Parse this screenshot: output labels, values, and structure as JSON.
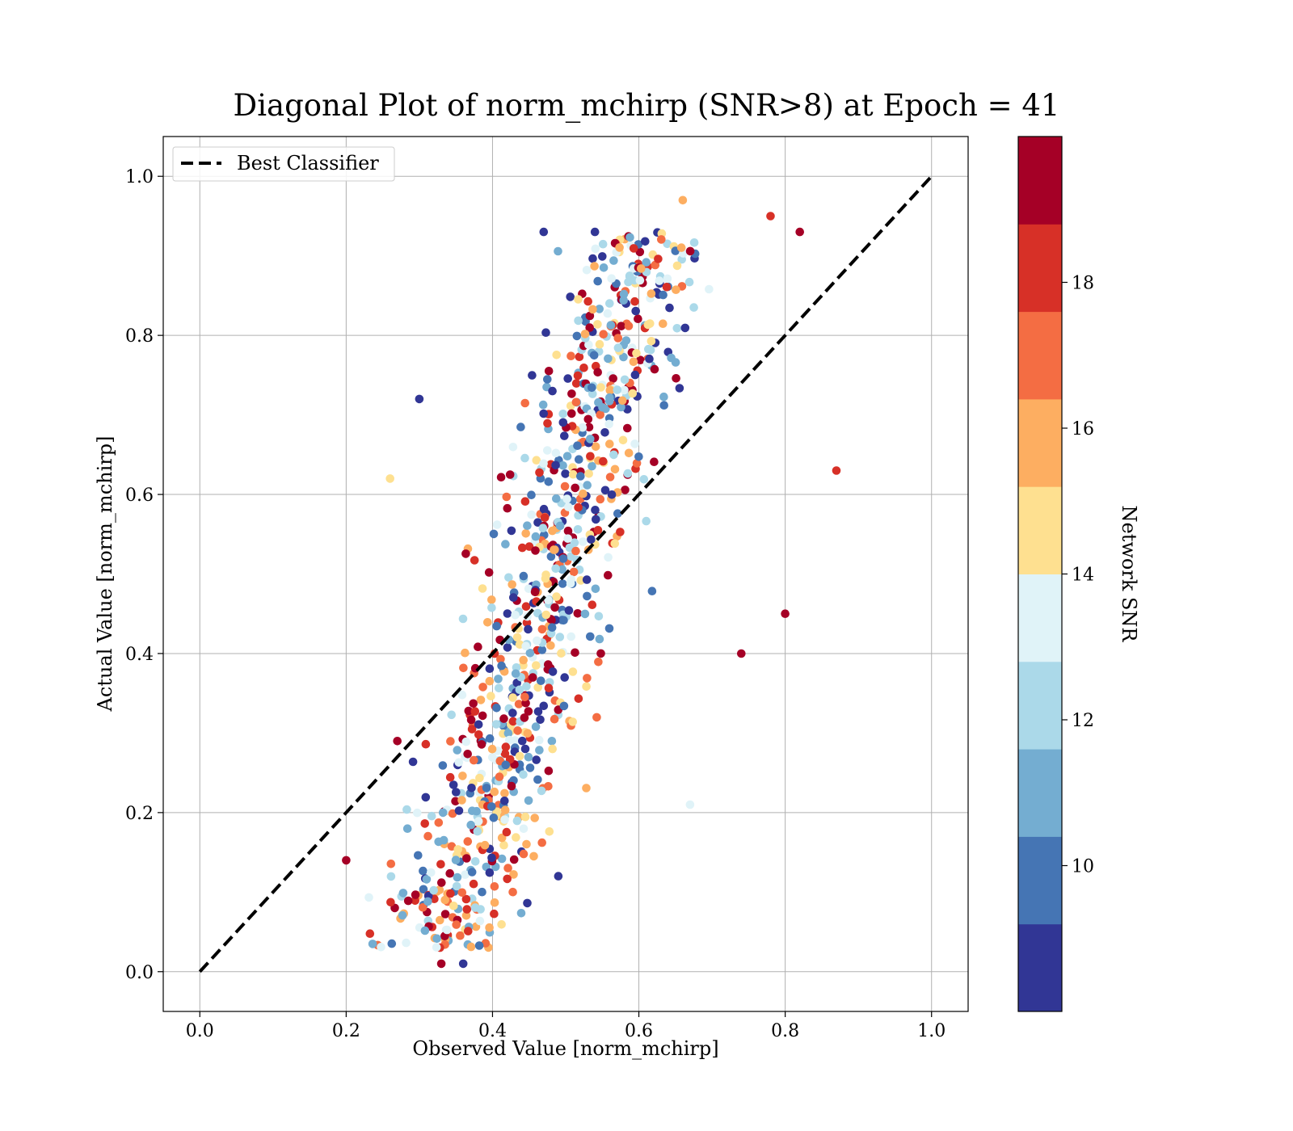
{
  "chart_data": {
    "type": "scatter",
    "title": "Diagonal Plot of norm_mchirp (SNR>8) at Epoch = 41",
    "xlabel": "Observed Value [norm_mchirp]",
    "ylabel": "Actual Value [norm_mchirp]",
    "xlim": [
      -0.05,
      1.05
    ],
    "ylim": [
      -0.05,
      1.05
    ],
    "xticks": [
      "0.0",
      "0.2",
      "0.4",
      "0.6",
      "0.8",
      "1.0"
    ],
    "yticks": [
      "0.0",
      "0.2",
      "0.4",
      "0.6",
      "0.8",
      "1.0"
    ],
    "grid": true,
    "legend": {
      "position": "top-left",
      "entries": [
        {
          "label": "Best Classifier",
          "style": "dashed",
          "color": "#000000"
        }
      ]
    },
    "reference_line": {
      "x": [
        0.0,
        1.0
      ],
      "y": [
        0.0,
        1.0
      ]
    },
    "colorbar": {
      "label": "Network SNR",
      "range": [
        8,
        20
      ],
      "ticks": [
        "10",
        "12",
        "14",
        "16",
        "18"
      ],
      "colors": [
        "#313695",
        "#4575b4",
        "#74add1",
        "#abd9e9",
        "#e0f3f8",
        "#fee090",
        "#fdae61",
        "#f46d43",
        "#d73027",
        "#a50026"
      ]
    },
    "point_count": 900,
    "points_sample": [
      {
        "x": 0.47,
        "y": 0.93,
        "snr": 8.5
      },
      {
        "x": 0.54,
        "y": 0.93,
        "snr": 8.3
      },
      {
        "x": 0.66,
        "y": 0.97,
        "snr": 15.8
      },
      {
        "x": 0.78,
        "y": 0.95,
        "snr": 18.2
      },
      {
        "x": 0.82,
        "y": 0.93,
        "snr": 19.5
      },
      {
        "x": 0.3,
        "y": 0.72,
        "snr": 8.4
      },
      {
        "x": 0.26,
        "y": 0.62,
        "snr": 14.8
      },
      {
        "x": 0.2,
        "y": 0.14,
        "snr": 19.6
      },
      {
        "x": 0.87,
        "y": 0.63,
        "snr": 18.3
      },
      {
        "x": 0.8,
        "y": 0.45,
        "snr": 19.5
      },
      {
        "x": 0.33,
        "y": 0.01,
        "snr": 19.4
      },
      {
        "x": 0.36,
        "y": 0.01,
        "snr": 8.6
      },
      {
        "x": 0.49,
        "y": 0.12,
        "snr": 8.5
      },
      {
        "x": 0.67,
        "y": 0.21,
        "snr": 13.5
      },
      {
        "x": 0.27,
        "y": 0.29,
        "snr": 19.2
      },
      {
        "x": 0.74,
        "y": 0.4,
        "snr": 19.4
      }
    ]
  }
}
